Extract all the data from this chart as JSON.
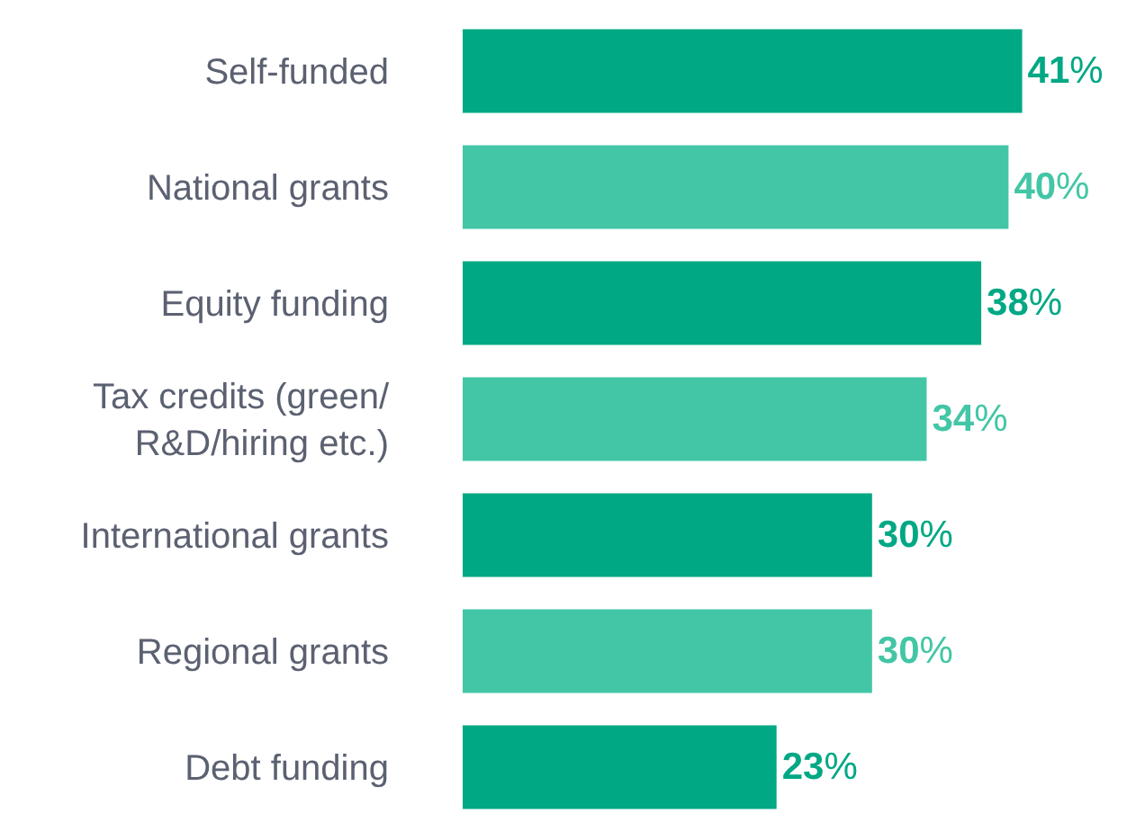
{
  "chart_data": {
    "type": "bar",
    "orientation": "horizontal",
    "categories": [
      "Self-funded",
      "National grants",
      "Equity funding",
      "Tax credits (green/ R&D/hiring etc.)",
      "International grants",
      "Regional grants",
      "Debt funding"
    ],
    "values": [
      41,
      40,
      38,
      34,
      30,
      30,
      23
    ],
    "colors": [
      "#00a884",
      "#43c6a6",
      "#00a884",
      "#43c6a6",
      "#00a884",
      "#43c6a6",
      "#00a884"
    ],
    "value_labels": [
      "41%",
      "40%",
      "38%",
      "34%",
      "30%",
      "30%",
      "23%"
    ],
    "xlim": [
      0,
      50
    ],
    "grid": false,
    "legend": false
  }
}
